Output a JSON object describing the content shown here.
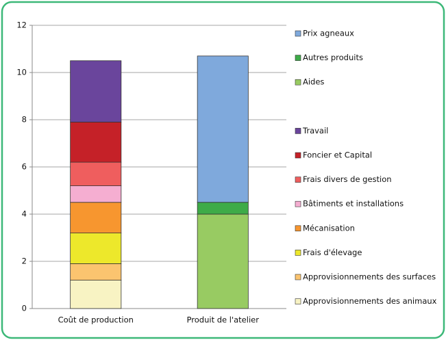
{
  "chart_data": {
    "type": "bar",
    "stacked": true,
    "categories": [
      "Coût de production",
      "Produit de l'atelier"
    ],
    "series": [
      {
        "name": "Approvisionnements des animaux",
        "color": "#f8f3c3",
        "values": [
          1.2,
          null
        ]
      },
      {
        "name": "Approvisionnements des surfaces",
        "color": "#fbc46f",
        "values": [
          0.7,
          null
        ]
      },
      {
        "name": "Frais d'élevage",
        "color": "#ede82b",
        "values": [
          1.3,
          null
        ]
      },
      {
        "name": "Mécanisation",
        "color": "#f7962f",
        "values": [
          1.3,
          null
        ]
      },
      {
        "name": "Bâtiments et installations",
        "color": "#f5aed1",
        "values": [
          0.7,
          null
        ]
      },
      {
        "name": "Frais divers de gestion",
        "color": "#ef5e5e",
        "values": [
          1.0,
          null
        ]
      },
      {
        "name": "Foncier et Capital",
        "color": "#c52128",
        "values": [
          1.7,
          null
        ]
      },
      {
        "name": "Travail",
        "color": "#6a459c",
        "values": [
          2.6,
          null
        ]
      },
      {
        "name": "Aides",
        "color": "#98cb62",
        "values": [
          null,
          4.0
        ]
      },
      {
        "name": "Autres produits",
        "color": "#3eab48",
        "values": [
          null,
          0.5
        ]
      },
      {
        "name": "Prix agneaux",
        "color": "#7fa9dc",
        "values": [
          null,
          6.2
        ]
      }
    ],
    "ylim": [
      0,
      12
    ],
    "yticks": [
      0,
      2,
      4,
      6,
      8,
      10,
      12
    ],
    "grid": true,
    "legend": "right"
  }
}
